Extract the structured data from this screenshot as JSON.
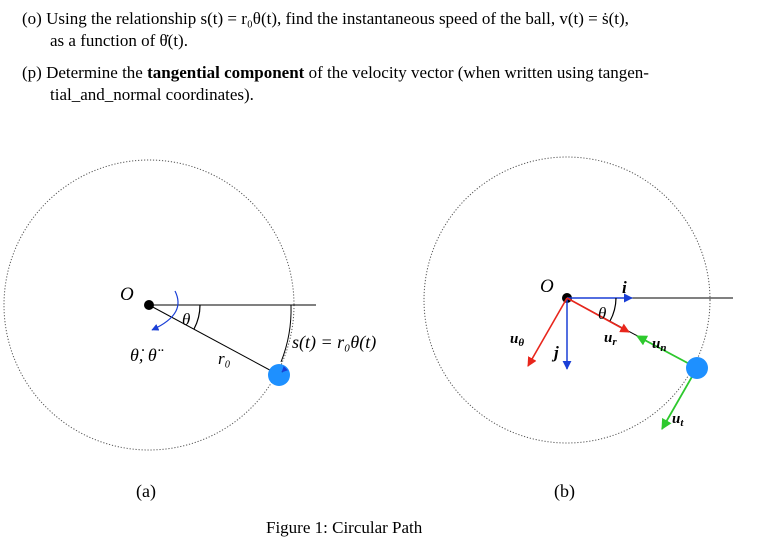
{
  "problems": [
    {
      "label": "(o)",
      "line1": "Using the relationship s(t) = r₀θ(t), find the instantaneous speed of the ball, v(t) = ṡ(t),",
      "line2": "as a function of θ̇(t)."
    },
    {
      "label": "(p)",
      "line1_pre": "Determine the ",
      "line1_bold": "tangential component",
      "line1_post": " of the velocity vector (when written using tangen-",
      "line2": "tial_and_normal coordinates)."
    }
  ],
  "figure_a": {
    "label_origin": "O",
    "label_theta": "θ",
    "label_rates": "θ̇, θ̈",
    "label_radius": "r₀",
    "label_arc": "s(t) = r₀θ(t)",
    "caption": "(a)"
  },
  "figure_b": {
    "label_origin": "O",
    "label_i": "i",
    "label_j": "j",
    "label_theta": "θ",
    "label_ur": "u",
    "label_ur_sub": "r",
    "label_utheta": "u",
    "label_utheta_sub": "θ",
    "label_un": "u",
    "label_un_sub": "n",
    "label_ut": "u",
    "label_ut_sub": "t",
    "caption": "(b)"
  },
  "figure_caption": "Figure 1: Circular Path",
  "colors": {
    "ball": "#1e90ff",
    "ur": "#e8261c",
    "utheta": "#e8261c",
    "un": "#2ec92e",
    "ut": "#2ec92e",
    "axes": "#1a3fd6",
    "rate_arrow": "#1a3fd6"
  }
}
